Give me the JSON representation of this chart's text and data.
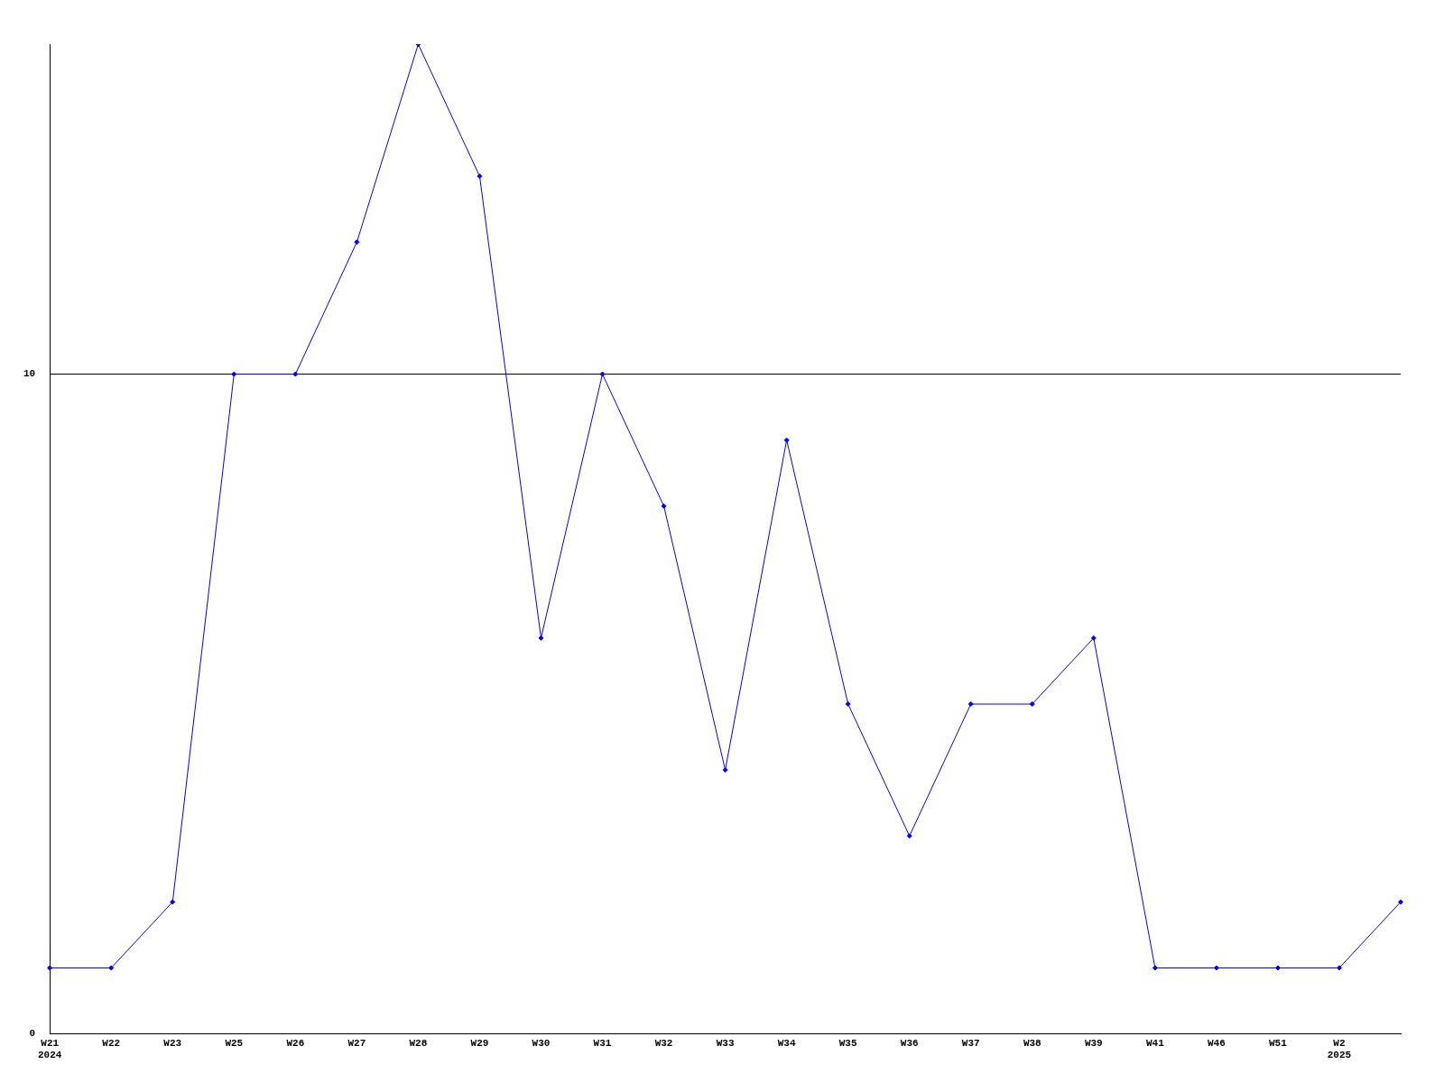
{
  "chart_data": {
    "type": "line",
    "categories": [
      "W21\n2024",
      "W22",
      "W23",
      "W25",
      "W26",
      "W27",
      "W28",
      "W29",
      "W30",
      "W31",
      "W32",
      "W33",
      "W34",
      "W35",
      "W36",
      "W37",
      "W38",
      "W39",
      "W41",
      "W46",
      "W51",
      "W2\n2025",
      null
    ],
    "series": [
      {
        "color": "#0000ff",
        "values": [
          1,
          1,
          2,
          10,
          10,
          12,
          15,
          13,
          6,
          10,
          8,
          4,
          9,
          5,
          3,
          5,
          5,
          6,
          1,
          1,
          1,
          1,
          2
        ]
      }
    ],
    "ylim": [
      0,
      15
    ],
    "yticks": [
      0,
      10
    ],
    "grid": "y",
    "legend": false,
    "marker": "diamond",
    "line_style": "solid"
  }
}
